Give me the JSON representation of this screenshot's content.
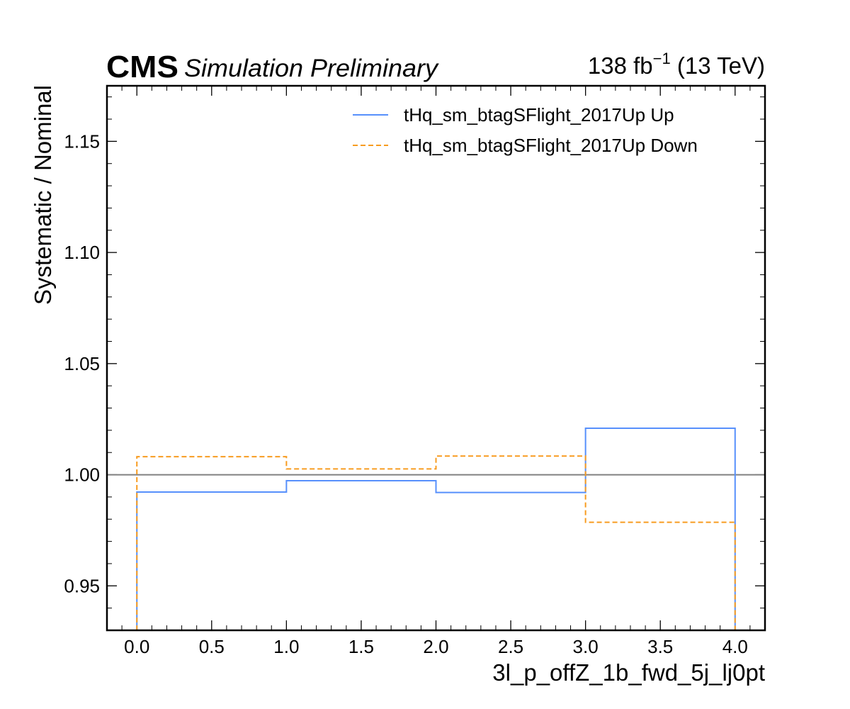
{
  "header": {
    "experiment": "CMS",
    "status": "Simulation Preliminary",
    "luminosity": "138 fb",
    "lumi_exponent": "−1",
    "energy": " (13 TeV)"
  },
  "chart_data": {
    "type": "line",
    "style": "step",
    "xlabel": "3l_p_offZ_1b_fwd_5j_lj0pt",
    "ylabel": "Systematic / Nominal",
    "xlim": [
      -0.2,
      4.2
    ],
    "ylim": [
      0.93,
      1.175
    ],
    "x_ticks": [
      0.0,
      0.5,
      1.0,
      1.5,
      2.0,
      2.5,
      3.0,
      3.5,
      4.0
    ],
    "x_tick_labels": [
      "0.0",
      "0.5",
      "1.0",
      "1.5",
      "2.0",
      "2.5",
      "3.0",
      "3.5",
      "4.0"
    ],
    "y_ticks": [
      0.95,
      1.0,
      1.05,
      1.1,
      1.15
    ],
    "y_tick_labels": [
      "0.95",
      "1.00",
      "1.05",
      "1.10",
      "1.15"
    ],
    "bin_edges": [
      0,
      1,
      2,
      3,
      4
    ],
    "reference_line": 1.0,
    "legend_position": "top-right",
    "grid": false,
    "series": [
      {
        "name": "tHq_sm_btagSFlight_2017Up Up",
        "values": [
          0.9922,
          0.9973,
          0.992,
          1.0209
        ],
        "color": "#5790fc",
        "dash": "solid"
      },
      {
        "name": "tHq_sm_btagSFlight_2017Up Down",
        "values": [
          1.0081,
          1.0026,
          1.0084,
          0.9786
        ],
        "color": "#f89c20",
        "dash": "dashed"
      }
    ]
  }
}
